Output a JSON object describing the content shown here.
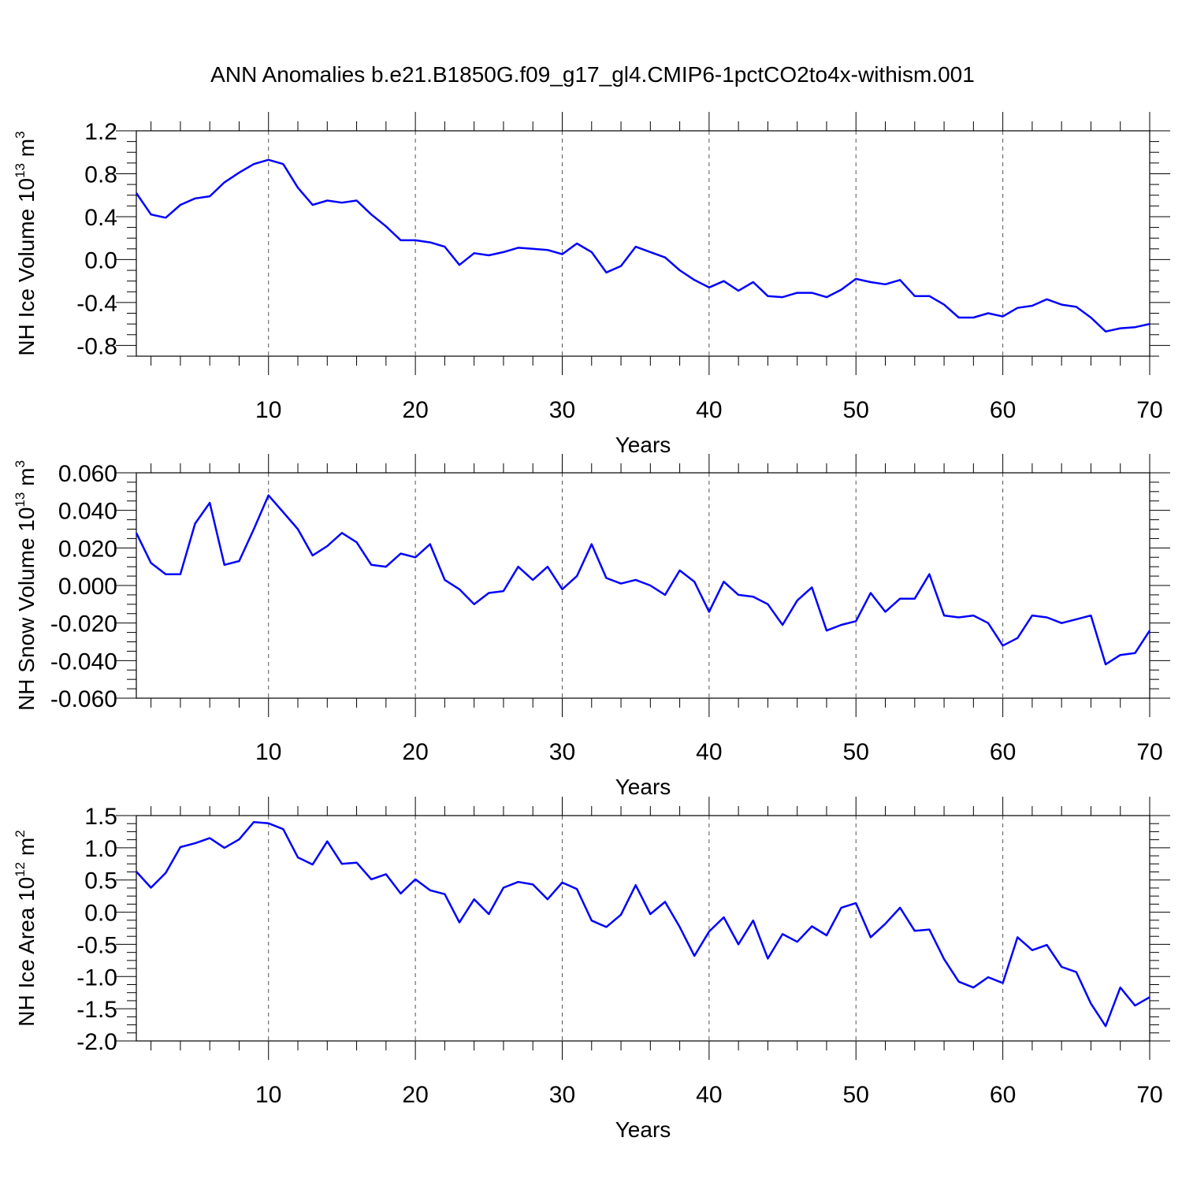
{
  "figure": {
    "title": "ANN Anomalies b.e21.B1850G.f09_g17_gl4.CMIP6-1pctCO2to4x-withism.001"
  },
  "colors": {
    "line": "#0000ff",
    "axis": "#000000",
    "grid": "#555555"
  },
  "chart_data": [
    {
      "type": "line",
      "ylabel": "NH Ice Volume 10",
      "ylabel_sup": "13",
      "ylabel_unit": " m",
      "ylabel_unit_sup": "3",
      "xlabel": "Years",
      "xlim": [
        1,
        70
      ],
      "ylim": [
        -0.9,
        1.2
      ],
      "x_ticks": [
        10,
        20,
        30,
        40,
        50,
        60,
        70
      ],
      "y_ticks": [
        1.2,
        0.8,
        0.4,
        0.0,
        -0.4,
        -0.8
      ],
      "y_tick_labels": [
        "1.2",
        "0.8",
        "0.4",
        "0.0",
        "-0.4",
        "-0.8"
      ],
      "grid_x": [
        10,
        20,
        30,
        40,
        50,
        60
      ],
      "series": [
        {
          "x": [
            1,
            2,
            3,
            4,
            5,
            6,
            7,
            8,
            9,
            10,
            11,
            12,
            13,
            14,
            15,
            16,
            17,
            18,
            19,
            20,
            21,
            22,
            23,
            24,
            25,
            26,
            27,
            28,
            29,
            30,
            31,
            32,
            33,
            34,
            35,
            36,
            37,
            38,
            39,
            40,
            41,
            42,
            43,
            44,
            45,
            46,
            47,
            48,
            49,
            50,
            51,
            52,
            53,
            54,
            55,
            56,
            57,
            58,
            59,
            60,
            61,
            62,
            63,
            64,
            65,
            66,
            67,
            68,
            69,
            70
          ],
          "values": [
            0.62,
            0.42,
            0.39,
            0.51,
            0.57,
            0.59,
            0.72,
            0.81,
            0.89,
            0.93,
            0.89,
            0.67,
            0.51,
            0.55,
            0.53,
            0.55,
            0.42,
            0.31,
            0.18,
            0.18,
            0.16,
            0.12,
            -0.05,
            0.06,
            0.04,
            0.07,
            0.11,
            0.1,
            0.09,
            0.05,
            0.15,
            0.07,
            -0.12,
            -0.06,
            0.12,
            0.07,
            0.02,
            -0.1,
            -0.19,
            -0.26,
            -0.2,
            -0.29,
            -0.21,
            -0.34,
            -0.35,
            -0.31,
            -0.31,
            -0.35,
            -0.28,
            -0.18,
            -0.21,
            -0.23,
            -0.19,
            -0.34,
            -0.34,
            -0.42,
            -0.54,
            -0.54,
            -0.5,
            -0.53,
            -0.45,
            -0.43,
            -0.37,
            -0.42,
            -0.44,
            -0.54,
            -0.67,
            -0.64,
            -0.63,
            -0.6
          ]
        }
      ]
    },
    {
      "type": "line",
      "ylabel": "NH Snow Volume 10",
      "ylabel_sup": "13",
      "ylabel_unit": " m",
      "ylabel_unit_sup": "3",
      "xlabel": "Years",
      "xlim": [
        1,
        70
      ],
      "ylim": [
        -0.06,
        0.06
      ],
      "x_ticks": [
        10,
        20,
        30,
        40,
        50,
        60,
        70
      ],
      "y_ticks": [
        0.06,
        0.04,
        0.02,
        0.0,
        -0.02,
        -0.04,
        -0.06
      ],
      "y_tick_labels": [
        "0.060",
        "0.040",
        "0.020",
        "0.000",
        "-0.020",
        "-0.040",
        "-0.060"
      ],
      "grid_x": [
        10,
        20,
        30,
        40,
        50,
        60
      ],
      "series": [
        {
          "x": [
            1,
            2,
            3,
            4,
            5,
            6,
            7,
            8,
            9,
            10,
            11,
            12,
            13,
            14,
            15,
            16,
            17,
            18,
            19,
            20,
            21,
            22,
            23,
            24,
            25,
            26,
            27,
            28,
            29,
            30,
            31,
            32,
            33,
            34,
            35,
            36,
            37,
            38,
            39,
            40,
            41,
            42,
            43,
            44,
            45,
            46,
            47,
            48,
            49,
            50,
            51,
            52,
            53,
            54,
            55,
            56,
            57,
            58,
            59,
            60,
            61,
            62,
            63,
            64,
            65,
            66,
            67,
            68,
            69,
            70
          ],
          "values": [
            0.028,
            0.012,
            0.006,
            0.006,
            0.033,
            0.044,
            0.011,
            0.013,
            0.03,
            0.048,
            0.039,
            0.03,
            0.016,
            0.021,
            0.028,
            0.023,
            0.011,
            0.01,
            0.017,
            0.015,
            0.022,
            0.003,
            -0.002,
            -0.01,
            -0.004,
            -0.003,
            0.01,
            0.003,
            0.01,
            -0.002,
            0.005,
            0.022,
            0.004,
            0.001,
            0.003,
            0.0,
            -0.005,
            0.008,
            0.002,
            -0.014,
            0.002,
            -0.005,
            -0.006,
            -0.01,
            -0.021,
            -0.008,
            -0.001,
            -0.024,
            -0.021,
            -0.019,
            -0.004,
            -0.014,
            -0.007,
            -0.007,
            0.006,
            -0.016,
            -0.017,
            -0.016,
            -0.02,
            -0.032,
            -0.028,
            -0.016,
            -0.017,
            -0.02,
            -0.018,
            -0.016,
            -0.042,
            -0.037,
            -0.036,
            -0.024
          ]
        }
      ]
    },
    {
      "type": "line",
      "ylabel": "NH Ice Area 10",
      "ylabel_sup": "12",
      "ylabel_unit": " m",
      "ylabel_unit_sup": "2",
      "xlabel": "Years",
      "xlim": [
        1,
        70
      ],
      "ylim": [
        -2.0,
        1.5
      ],
      "x_ticks": [
        10,
        20,
        30,
        40,
        50,
        60,
        70
      ],
      "y_ticks": [
        1.5,
        1.0,
        0.5,
        0.0,
        -0.5,
        -1.0,
        -1.5,
        -2.0
      ],
      "y_tick_labels": [
        "1.5",
        "1.0",
        "0.5",
        "0.0",
        "-0.5",
        "-1.0",
        "-1.5",
        "-2.0"
      ],
      "grid_x": [
        10,
        20,
        30,
        40,
        50,
        60
      ],
      "series": [
        {
          "x": [
            1,
            2,
            3,
            4,
            5,
            6,
            7,
            8,
            9,
            10,
            11,
            12,
            13,
            14,
            15,
            16,
            17,
            18,
            19,
            20,
            21,
            22,
            23,
            24,
            25,
            26,
            27,
            28,
            29,
            30,
            31,
            32,
            33,
            34,
            35,
            36,
            37,
            38,
            39,
            40,
            41,
            42,
            43,
            44,
            45,
            46,
            47,
            48,
            49,
            50,
            51,
            52,
            53,
            54,
            55,
            56,
            57,
            58,
            59,
            60,
            61,
            62,
            63,
            64,
            65,
            66,
            67,
            68,
            69,
            70
          ],
          "values": [
            0.63,
            0.38,
            0.61,
            1.01,
            1.07,
            1.15,
            1.0,
            1.13,
            1.4,
            1.38,
            1.29,
            0.85,
            0.74,
            1.1,
            0.75,
            0.77,
            0.51,
            0.59,
            0.29,
            0.51,
            0.34,
            0.28,
            -0.16,
            0.2,
            -0.03,
            0.38,
            0.47,
            0.43,
            0.2,
            0.46,
            0.36,
            -0.13,
            -0.23,
            -0.04,
            0.42,
            -0.03,
            0.16,
            -0.23,
            -0.68,
            -0.3,
            -0.08,
            -0.5,
            -0.13,
            -0.72,
            -0.34,
            -0.46,
            -0.22,
            -0.36,
            0.07,
            0.14,
            -0.39,
            -0.18,
            0.07,
            -0.29,
            -0.27,
            -0.73,
            -1.08,
            -1.17,
            -1.01,
            -1.1,
            -0.39,
            -0.59,
            -0.51,
            -0.85,
            -0.93,
            -1.42,
            -1.77,
            -1.17,
            -1.45,
            -1.32
          ]
        }
      ]
    }
  ]
}
